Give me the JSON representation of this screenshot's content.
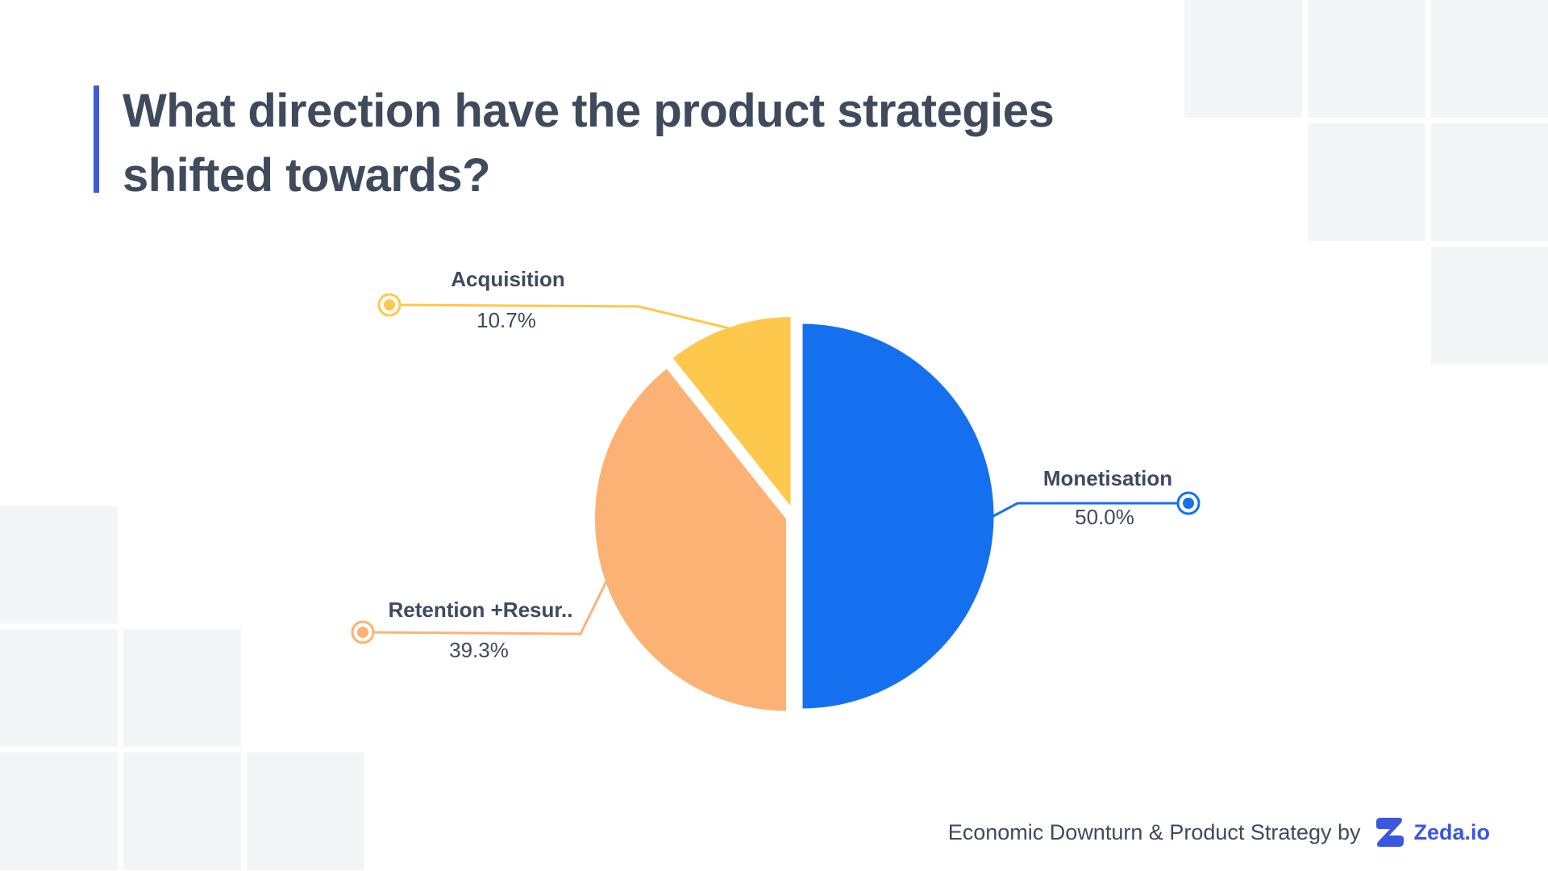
{
  "title": "What direction have the product strategies shifted towards?",
  "footer": {
    "text": "Economic Downturn & Product Strategy by",
    "brand": "Zeda.io",
    "brand_color": "#3b57e0"
  },
  "colors": {
    "title_text": "#3f4a5c",
    "title_accent": "#3d5bd9"
  },
  "chart_data": {
    "type": "pie",
    "title": "What direction have the product strategies shifted towards?",
    "slices": [
      {
        "label": "Monetisation",
        "value": 50.0,
        "value_label": "50.0%",
        "color": "#1570ef"
      },
      {
        "label": "Retention +Resur..",
        "value": 39.3,
        "value_label": "39.3%",
        "color": "#fdb275"
      },
      {
        "label": "Acquisition",
        "value": 10.7,
        "value_label": "10.7%",
        "color": "#fdc84b"
      }
    ],
    "start": "12 o'clock",
    "direction": "clockwise",
    "legend": "none"
  }
}
